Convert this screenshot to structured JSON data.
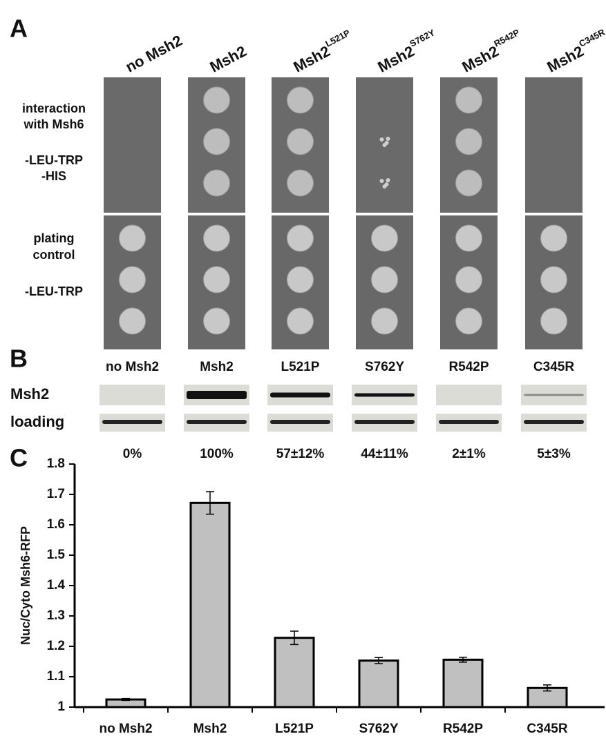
{
  "panel_a": {
    "letter": "A",
    "columns": [
      {
        "base": "no Msh2"
      },
      {
        "base": "Msh2"
      },
      {
        "base": "Msh2",
        "sup": "L521P"
      },
      {
        "base": "Msh2",
        "sup": "S762Y"
      },
      {
        "base": "Msh2",
        "sup": "R542P"
      },
      {
        "base": "Msh2",
        "sup": "C345R"
      }
    ],
    "row_labels": [
      "interaction",
      "with Msh6",
      "-LEU-TRP",
      "-HIS",
      "plating",
      "control",
      "-LEU-TRP"
    ]
  },
  "panel_b": {
    "letter": "B",
    "columns": [
      "no Msh2",
      "Msh2",
      "L521P",
      "S762Y",
      "R542P",
      "C345R"
    ],
    "row_labels": [
      "Msh2",
      "loading"
    ],
    "percentages": [
      "0%",
      "100%",
      "57±12%",
      "44±11%",
      "2±1%",
      "5±3%"
    ]
  },
  "panel_c": {
    "letter": "C"
  },
  "chart_data": {
    "type": "bar",
    "ylabel": "Nuc/Cyto Msh6-RFP",
    "categories": [
      "no Msh2",
      "Msh2",
      "L521P",
      "S762Y",
      "R542P",
      "C345R"
    ],
    "values": [
      1.025,
      1.672,
      1.228,
      1.153,
      1.156,
      1.063
    ],
    "errors": [
      0.003,
      0.037,
      0.022,
      0.01,
      0.008,
      0.01
    ],
    "color": "#c0c0c0",
    "ylim": [
      1,
      1.8
    ],
    "yticks": [
      1,
      1.1,
      1.2,
      1.3,
      1.4,
      1.5,
      1.6,
      1.7,
      1.8
    ],
    "grid": false
  }
}
